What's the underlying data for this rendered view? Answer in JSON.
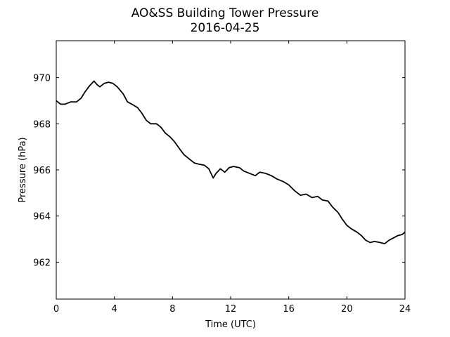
{
  "chart_data": {
    "type": "line",
    "title": "AO&SS Building Tower Pressure",
    "subtitle": "2016-04-25",
    "xlabel": "Time (UTC)",
    "ylabel": "Pressure (hPa)",
    "xlim": [
      0,
      24
    ],
    "ylim": [
      960.4,
      971.6
    ],
    "xticks": [
      0,
      4,
      8,
      12,
      16,
      20,
      24
    ],
    "yticks": [
      962,
      964,
      966,
      968,
      970
    ],
    "grid": false,
    "legend": "none",
    "series": [
      {
        "color": "#000000",
        "x": [
          0,
          0.3,
          0.6,
          1.0,
          1.4,
          1.7,
          2.0,
          2.3,
          2.6,
          2.8,
          3.0,
          3.3,
          3.6,
          3.9,
          4.2,
          4.6,
          4.9,
          5.2,
          5.6,
          5.9,
          6.2,
          6.5,
          6.9,
          7.2,
          7.5,
          7.8,
          8.1,
          8.5,
          8.8,
          9.1,
          9.5,
          9.8,
          10.2,
          10.5,
          10.8,
          11.0,
          11.3,
          11.6,
          11.9,
          12.2,
          12.6,
          12.9,
          13.3,
          13.7,
          14.0,
          14.4,
          14.8,
          15.2,
          15.6,
          16.0,
          16.4,
          16.8,
          17.2,
          17.6,
          18.0,
          18.3,
          18.7,
          19.0,
          19.4,
          19.7,
          20.0,
          20.3,
          20.7,
          21.0,
          21.3,
          21.6,
          21.9,
          22.3,
          22.6,
          22.9,
          23.2,
          23.5,
          23.8,
          24.0
        ],
        "y": [
          969.0,
          968.85,
          968.85,
          968.95,
          968.95,
          969.1,
          969.4,
          969.65,
          969.85,
          969.7,
          969.6,
          969.75,
          969.8,
          969.75,
          969.6,
          969.3,
          968.95,
          968.85,
          968.7,
          968.45,
          968.15,
          968.0,
          968.0,
          967.85,
          967.6,
          967.45,
          967.25,
          966.9,
          966.65,
          966.5,
          966.3,
          966.25,
          966.2,
          966.05,
          965.65,
          965.85,
          966.05,
          965.9,
          966.1,
          966.15,
          966.1,
          965.95,
          965.85,
          965.75,
          965.9,
          965.85,
          965.75,
          965.6,
          965.5,
          965.35,
          965.1,
          964.9,
          964.95,
          964.8,
          964.85,
          964.7,
          964.65,
          964.4,
          964.15,
          963.85,
          963.6,
          963.45,
          963.3,
          963.15,
          962.95,
          962.85,
          962.9,
          962.85,
          962.8,
          962.95,
          963.05,
          963.15,
          963.2,
          963.3
        ]
      }
    ]
  }
}
